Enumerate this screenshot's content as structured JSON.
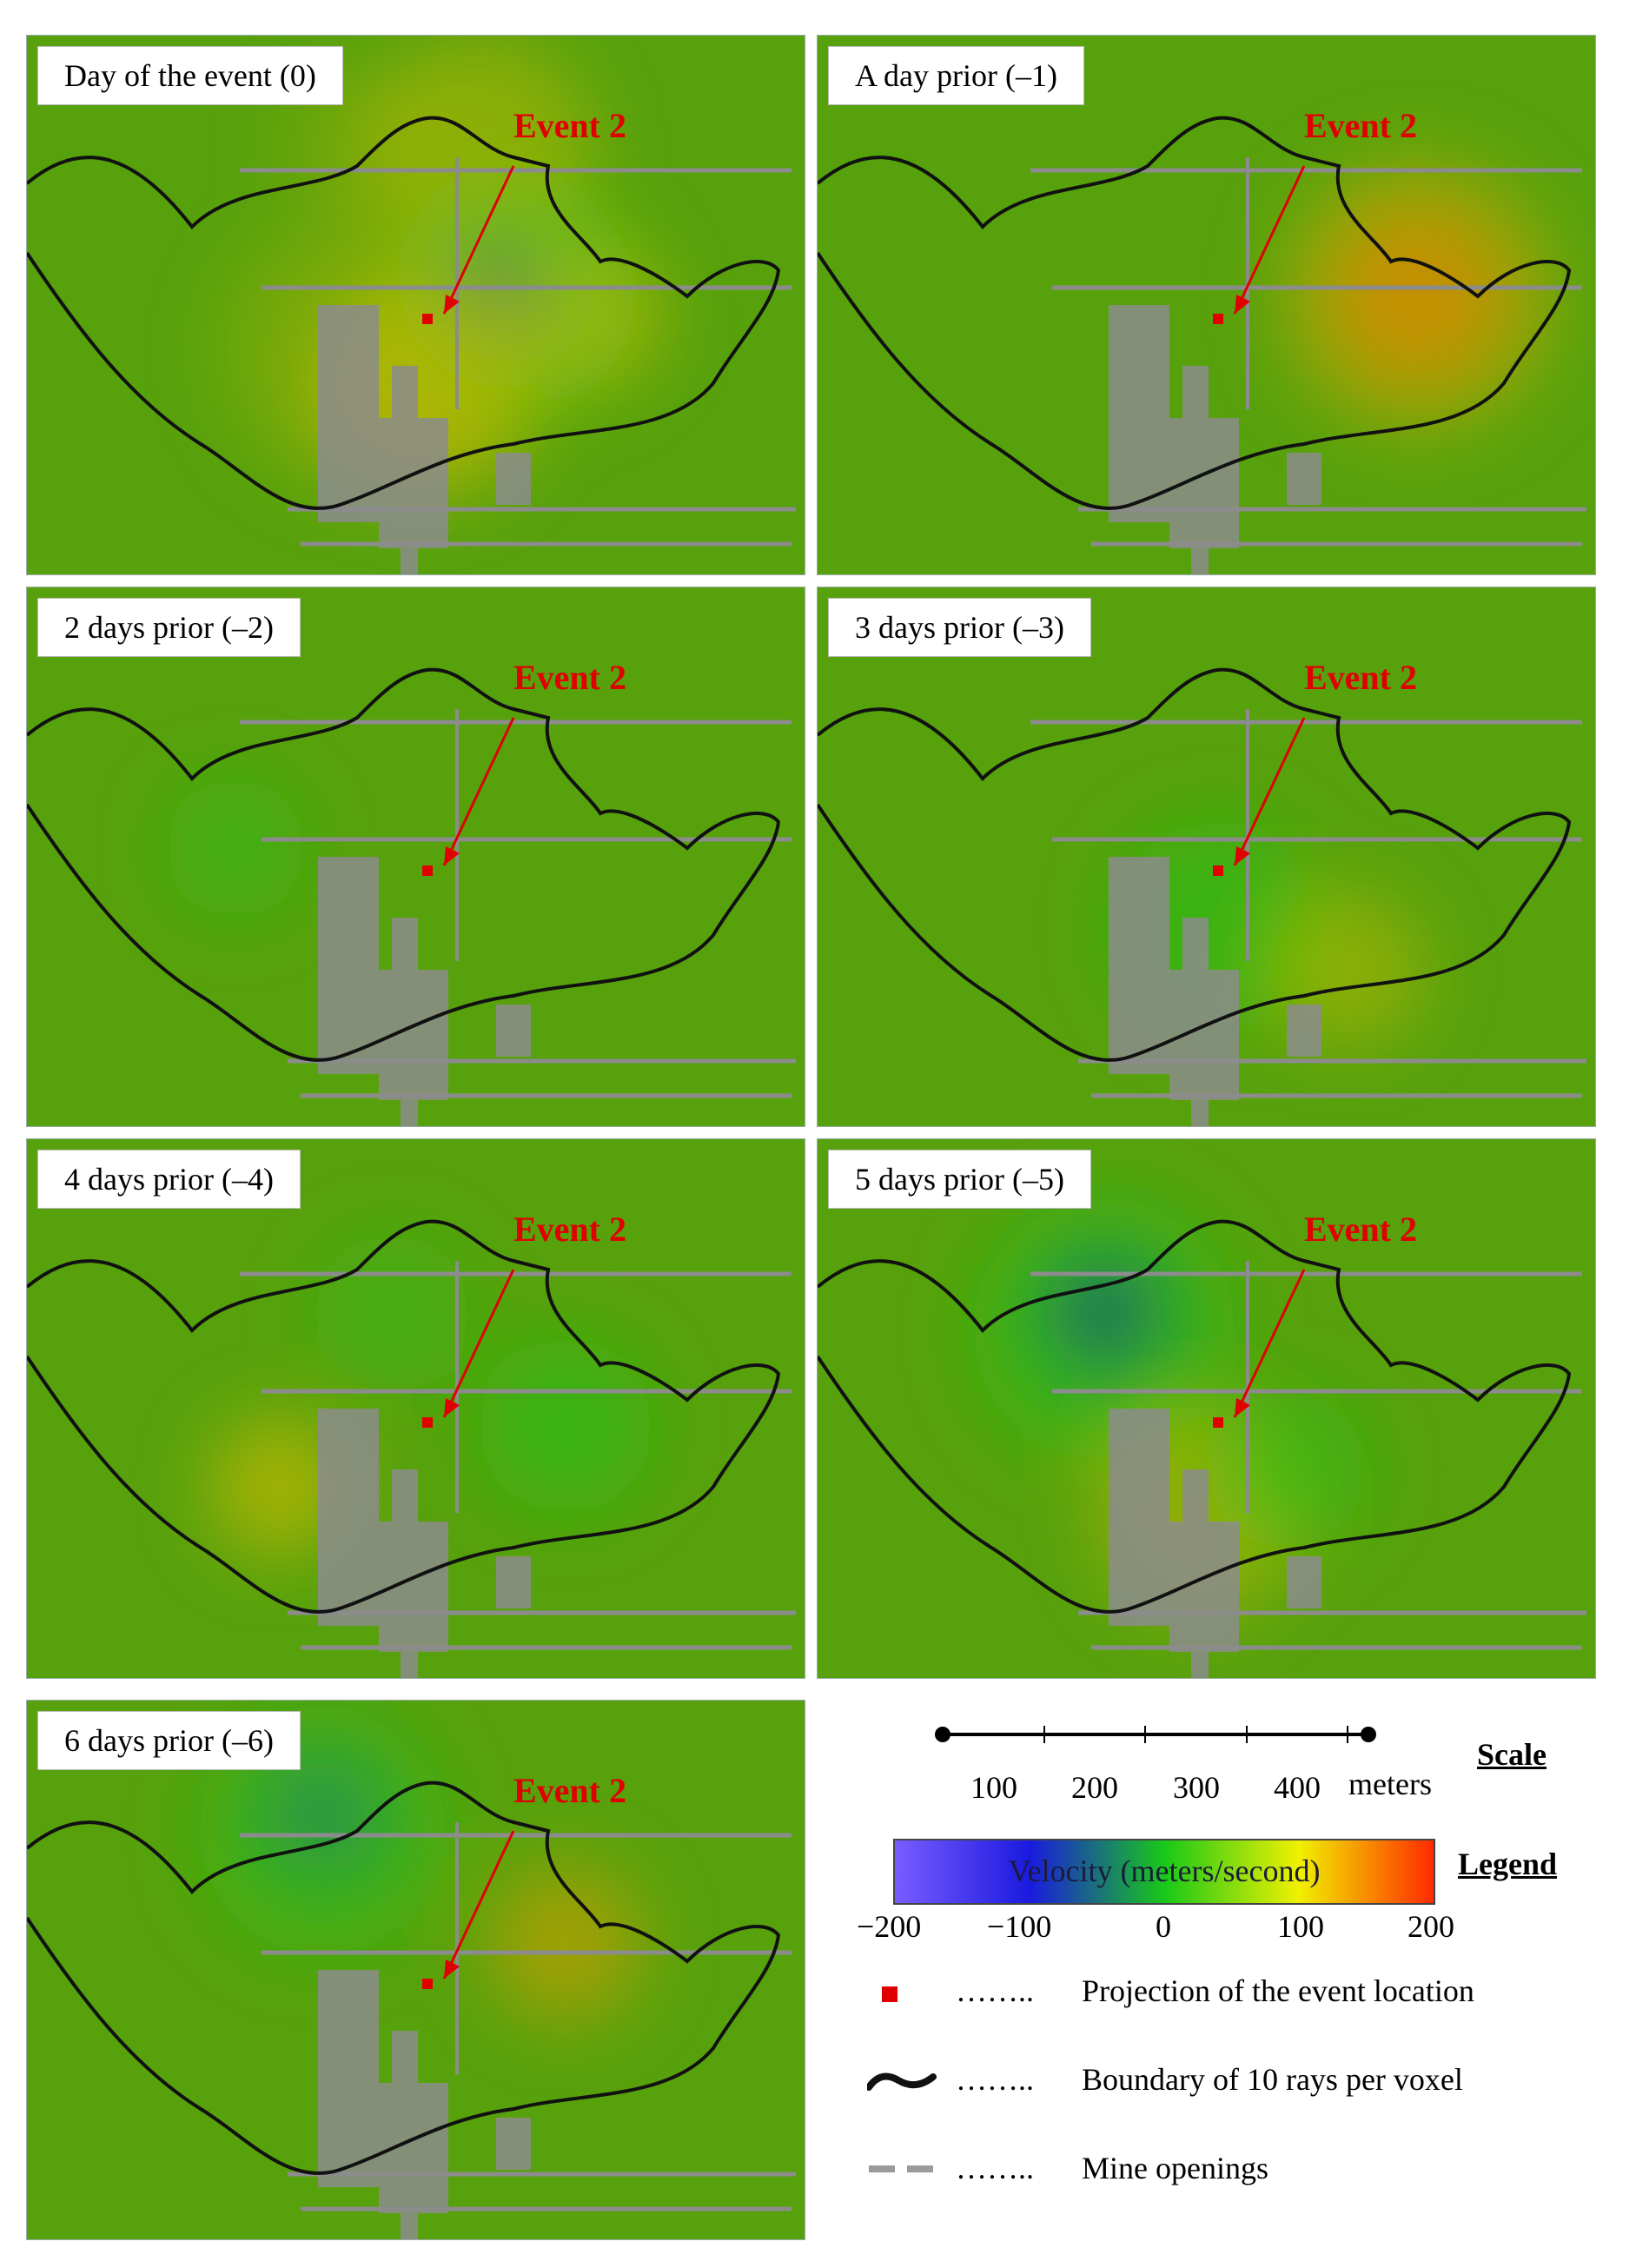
{
  "panels": [
    {
      "caption": "Day of the event (0)",
      "event_label": "Event 2"
    },
    {
      "caption": "A day prior (–1)",
      "event_label": "Event 2"
    },
    {
      "caption": "2 days prior (–2)",
      "event_label": "Event 2"
    },
    {
      "caption": "3 days prior (–3)",
      "event_label": "Event 2"
    },
    {
      "caption": "4 days prior (–4)",
      "event_label": "Event 2"
    },
    {
      "caption": "5 days prior (–5)",
      "event_label": "Event 2"
    },
    {
      "caption": "6 days prior (–6)",
      "event_label": "Event 2"
    }
  ],
  "scale": {
    "title": "Scale",
    "ticks": [
      "100",
      "200",
      "300",
      "400"
    ],
    "unit": "meters"
  },
  "legend": {
    "title": "Legend",
    "colorbar_label": "Velocity (meters/second)",
    "ticks": [
      "−200",
      "−100",
      "0",
      "100",
      "200"
    ],
    "colors": [
      "#7a5cff",
      "#1a1adf",
      "#19c819",
      "#f0f000",
      "#ff2a00"
    ],
    "items": [
      {
        "symbol": "red-square",
        "dots": "……..",
        "label": "Projection of the event location"
      },
      {
        "symbol": "black-curve",
        "dots": "……..",
        "label": "Boundary of 10 rays per voxel"
      },
      {
        "symbol": "gray-dash",
        "dots": "……..",
        "label": "Mine openings"
      }
    ]
  },
  "colors": {
    "background": "#57a10c",
    "event": "#e00000",
    "boundary": "#111111",
    "mine": "#8c8c8c"
  }
}
